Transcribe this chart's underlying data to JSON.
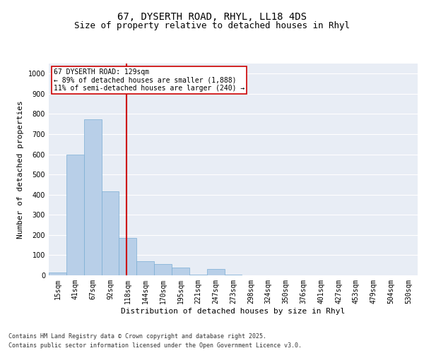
{
  "title1": "67, DYSERTH ROAD, RHYL, LL18 4DS",
  "title2": "Size of property relative to detached houses in Rhyl",
  "xlabel": "Distribution of detached houses by size in Rhyl",
  "ylabel": "Number of detached properties",
  "categories": [
    "15sqm",
    "41sqm",
    "67sqm",
    "92sqm",
    "118sqm",
    "144sqm",
    "170sqm",
    "195sqm",
    "221sqm",
    "247sqm",
    "273sqm",
    "298sqm",
    "324sqm",
    "350sqm",
    "376sqm",
    "401sqm",
    "427sqm",
    "453sqm",
    "479sqm",
    "504sqm",
    "530sqm"
  ],
  "values": [
    15,
    600,
    775,
    415,
    185,
    70,
    55,
    40,
    5,
    30,
    5,
    0,
    0,
    0,
    0,
    0,
    0,
    0,
    0,
    0,
    0
  ],
  "bar_color": "#b8cfe8",
  "bar_edge_color": "#7aadd4",
  "background_color": "#e8edf5",
  "grid_color": "#ffffff",
  "annotation_text": "67 DYSERTH ROAD: 129sqm\n← 89% of detached houses are smaller (1,888)\n11% of semi-detached houses are larger (240) →",
  "annotation_box_color": "#cc0000",
  "red_line_index": 4,
  "ylim": [
    0,
    1050
  ],
  "yticks": [
    0,
    100,
    200,
    300,
    400,
    500,
    600,
    700,
    800,
    900,
    1000
  ],
  "footer_line1": "Contains HM Land Registry data © Crown copyright and database right 2025.",
  "footer_line2": "Contains public sector information licensed under the Open Government Licence v3.0.",
  "title1_fontsize": 10,
  "title2_fontsize": 9,
  "axis_label_fontsize": 8,
  "tick_fontsize": 7,
  "annotation_fontsize": 7,
  "footer_fontsize": 6
}
